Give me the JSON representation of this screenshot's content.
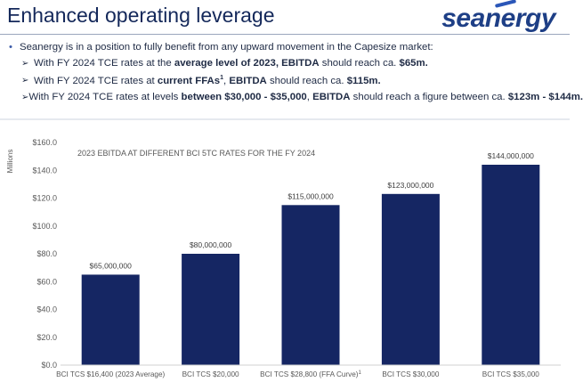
{
  "slide": {
    "title": "Enhanced operating leverage",
    "logo_text": "seanergy",
    "bullet": "Seanergy is in a position to fully benefit from any upward movement in the Capesize market:",
    "sub_bullets": [
      {
        "pre": "With FY 2024 TCE rates at the ",
        "bold1": "average level of 2023, EBITDA",
        "mid": " should reach ca. ",
        "bold2": "$65m.",
        "post": ""
      },
      {
        "pre": "With FY 2024 TCE rates at ",
        "bold1": "current FFAs",
        "sup": "1",
        "mid": ", ",
        "bold2": "EBITDA",
        "post": " should reach ca. ",
        "bold3": "$115m."
      },
      {
        "pre": "With FY 2024 TCE rates at levels ",
        "bold1": "between $30,000 - $35,000",
        "mid": ", ",
        "bold2": "EBITDA",
        "post": " should reach a figure between ca. ",
        "bold3": "$123m - $144m."
      }
    ]
  },
  "colors": {
    "bar": "#152663",
    "title": "#14285a",
    "accent": "#2a56b8"
  },
  "chart_data": {
    "type": "bar",
    "title": "2023 EBITDA AT DIFFERENT BCI 5TC RATES FOR THE FY 2024",
    "ylabel": "Millions",
    "ylim": [
      0,
      160
    ],
    "yticks": [
      "$0.0",
      "$20.0",
      "$40.0",
      "$60.0",
      "$80.0",
      "$100.0",
      "$120.0",
      "$140.0",
      "$160.0"
    ],
    "categories": [
      "BCI TCS $16,400 (2023 Average)",
      "BCI TCS $20,000",
      "BCI TCS $28,800 (FFA Curve)",
      "BCI TCS $30,000",
      "BCI TCS $35,000"
    ],
    "category_superscripts": [
      "",
      "",
      "1",
      "",
      ""
    ],
    "values": [
      65,
      80,
      115,
      123,
      144
    ],
    "data_labels": [
      "$65,000,000",
      "$80,000,000",
      "$115,000,000",
      "$123,000,000",
      "$144,000,000"
    ]
  }
}
